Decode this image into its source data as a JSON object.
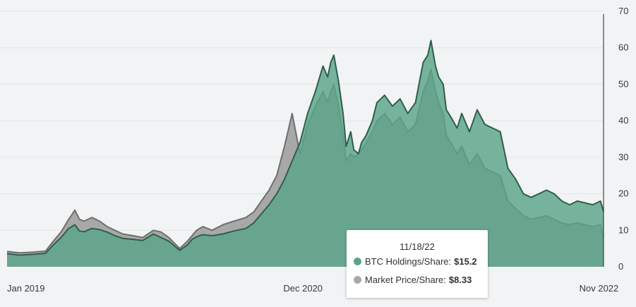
{
  "chart_data": {
    "type": "area",
    "title": "",
    "xlabel": "",
    "ylabel": "",
    "ylim": [
      0,
      70
    ],
    "y_ticks": [
      0,
      10,
      20,
      30,
      40,
      50,
      60,
      70
    ],
    "x_range": [
      2019.0,
      2022.87
    ],
    "x_tick_labels": [
      {
        "x": 2019.0,
        "label": "Jan 2019"
      },
      {
        "x": 2020.92,
        "label": "Dec 2020"
      },
      {
        "x": 2022.83,
        "label": "Nov 2022"
      }
    ],
    "colors": {
      "btc": "#5aa58a",
      "btc_line": "#2f5e4b",
      "market": "#a8a8a8",
      "market_line": "#6e6e6e"
    },
    "series": [
      {
        "name": "BTC Holdings/Share",
        "x": [
          2019.0,
          2019.08,
          2019.17,
          2019.25,
          2019.3,
          2019.35,
          2019.4,
          2019.44,
          2019.47,
          2019.5,
          2019.55,
          2019.6,
          2019.65,
          2019.7,
          2019.75,
          2019.82,
          2019.88,
          2019.95,
          2020.0,
          2020.05,
          2020.12,
          2020.17,
          2020.2,
          2020.23,
          2020.27,
          2020.33,
          2020.4,
          2020.47,
          2020.55,
          2020.6,
          2020.65,
          2020.7,
          2020.75,
          2020.8,
          2020.85,
          2020.9,
          2020.95,
          2021.0,
          2021.05,
          2021.08,
          2021.1,
          2021.12,
          2021.15,
          2021.18,
          2021.2,
          2021.23,
          2021.25,
          2021.28,
          2021.3,
          2021.33,
          2021.37,
          2021.4,
          2021.45,
          2021.5,
          2021.55,
          2021.6,
          2021.65,
          2021.7,
          2021.73,
          2021.75,
          2021.78,
          2021.8,
          2021.83,
          2021.85,
          2021.88,
          2021.92,
          2021.95,
          2022.0,
          2022.05,
          2022.1,
          2022.15,
          2022.2,
          2022.25,
          2022.3,
          2022.35,
          2022.4,
          2022.45,
          2022.5,
          2022.55,
          2022.6,
          2022.65,
          2022.7,
          2022.75,
          2022.8,
          2022.85,
          2022.87
        ],
        "values": [
          3.6,
          3.2,
          3.4,
          3.7,
          6.0,
          8.0,
          10.5,
          11.5,
          9.8,
          9.6,
          10.5,
          10.2,
          9.5,
          8.5,
          7.8,
          7.5,
          7.2,
          9.0,
          8.0,
          7.0,
          4.5,
          6.0,
          7.5,
          8.2,
          8.8,
          8.5,
          9.0,
          9.8,
          10.5,
          12.0,
          14.5,
          17.0,
          20.0,
          24.0,
          29.0,
          34.0,
          42.0,
          48.0,
          55.0,
          52.0,
          56.0,
          58.0,
          51.0,
          42.0,
          33.0,
          37.0,
          32.0,
          31.0,
          34.0,
          36.0,
          40.0,
          45.0,
          47.0,
          44.0,
          46.0,
          42.0,
          45.0,
          56.0,
          58.0,
          62.0,
          55.0,
          52.0,
          50.0,
          43.0,
          41.0,
          38.0,
          42.0,
          37.0,
          43.0,
          39.0,
          38.0,
          37.0,
          27.0,
          24.0,
          20.0,
          19.0,
          20.0,
          21.0,
          20.0,
          18.0,
          17.0,
          18.0,
          17.5,
          17.0,
          18.0,
          15.2
        ]
      },
      {
        "name": "Market Price/Share",
        "x": [
          2019.0,
          2019.08,
          2019.17,
          2019.25,
          2019.3,
          2019.35,
          2019.4,
          2019.44,
          2019.47,
          2019.5,
          2019.55,
          2019.6,
          2019.65,
          2019.7,
          2019.75,
          2019.82,
          2019.88,
          2019.95,
          2020.0,
          2020.05,
          2020.12,
          2020.17,
          2020.2,
          2020.23,
          2020.27,
          2020.33,
          2020.4,
          2020.47,
          2020.55,
          2020.6,
          2020.65,
          2020.7,
          2020.75,
          2020.8,
          2020.85,
          2020.9,
          2020.95,
          2021.0,
          2021.05,
          2021.08,
          2021.1,
          2021.12,
          2021.15,
          2021.18,
          2021.2,
          2021.23,
          2021.25,
          2021.28,
          2021.3,
          2021.33,
          2021.37,
          2021.4,
          2021.45,
          2021.5,
          2021.55,
          2021.6,
          2021.65,
          2021.7,
          2021.73,
          2021.75,
          2021.78,
          2021.8,
          2021.83,
          2021.85,
          2021.88,
          2021.92,
          2021.95,
          2022.0,
          2022.05,
          2022.1,
          2022.15,
          2022.2,
          2022.25,
          2022.3,
          2022.35,
          2022.4,
          2022.45,
          2022.5,
          2022.55,
          2022.6,
          2022.65,
          2022.7,
          2022.75,
          2022.8,
          2022.85,
          2022.87
        ],
        "values": [
          4.2,
          3.8,
          4.0,
          4.3,
          7.0,
          9.5,
          13.0,
          15.5,
          13.0,
          12.5,
          13.5,
          12.5,
          11.0,
          10.0,
          9.0,
          8.5,
          8.0,
          10.0,
          9.5,
          8.0,
          5.0,
          7.0,
          8.5,
          10.0,
          11.0,
          10.0,
          11.5,
          12.5,
          13.5,
          15.0,
          18.0,
          21.0,
          25.0,
          33.0,
          42.0,
          31.0,
          39.0,
          44.0,
          48.0,
          45.0,
          48.0,
          50.0,
          44.0,
          36.0,
          29.0,
          31.0,
          30.0,
          31.0,
          32.0,
          34.0,
          37.0,
          40.0,
          42.0,
          39.0,
          41.0,
          37.0,
          39.0,
          48.0,
          51.0,
          54.0,
          48.0,
          45.0,
          42.0,
          36.0,
          34.0,
          31.0,
          33.0,
          28.0,
          31.0,
          27.0,
          26.0,
          25.0,
          18.0,
          16.0,
          14.0,
          13.0,
          13.5,
          14.0,
          13.0,
          12.0,
          11.5,
          12.0,
          11.5,
          11.0,
          11.5,
          8.33
        ]
      }
    ],
    "tooltip": {
      "date": "11/18/22",
      "rows": [
        {
          "label": "BTC Holdings/Share:",
          "value": "$15.2"
        },
        {
          "label": "Market Price/Share:",
          "value": "$8.33"
        }
      ]
    }
  }
}
